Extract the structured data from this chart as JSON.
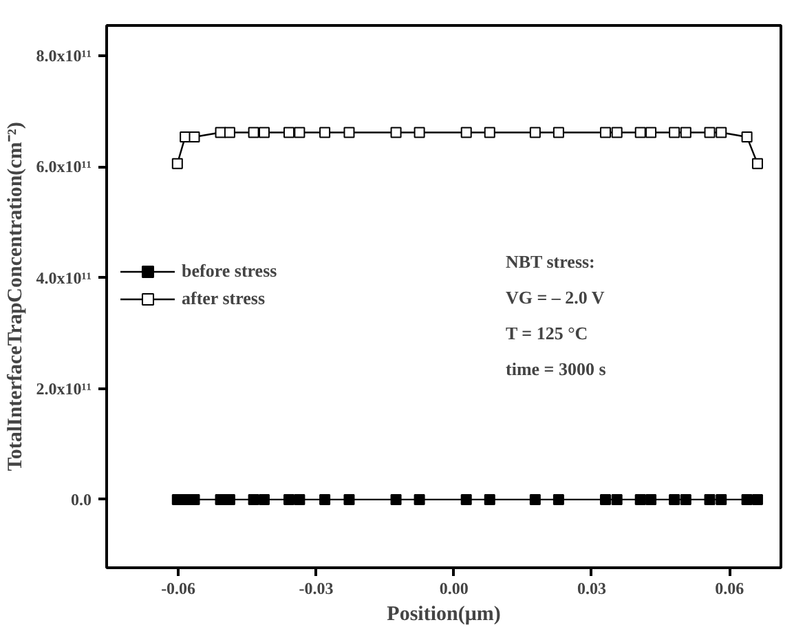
{
  "chart_data": {
    "type": "line",
    "xlabel": "Position(μm)",
    "ylabel": "TotalInterfaceTrapConcentration(cm⁻²)",
    "x": [
      -0.0602,
      -0.0585,
      -0.0565,
      -0.0508,
      -0.0488,
      -0.0436,
      -0.0413,
      -0.0359,
      -0.0336,
      -0.0281,
      -0.0228,
      -0.0126,
      -0.0075,
      0.0027,
      0.0078,
      0.0177,
      0.0228,
      0.033,
      0.0355,
      0.0406,
      0.0429,
      0.048,
      0.0505,
      0.0557,
      0.0582,
      0.0638,
      0.0661
    ],
    "series": [
      {
        "name": "before stress",
        "color": "#000000",
        "values": [
          0,
          0,
          0,
          0,
          0,
          0,
          0,
          0,
          0,
          0,
          0,
          0,
          0,
          0,
          0,
          0,
          0,
          0,
          0,
          0,
          0,
          0,
          0,
          0,
          0,
          0,
          0
        ]
      },
      {
        "name": "after stress",
        "color": "#000000",
        "values": [
          606000000000.0,
          654000000000.0,
          654000000000.0,
          662000000000.0,
          662000000000.0,
          662000000000.0,
          662000000000.0,
          662000000000.0,
          662000000000.0,
          662000000000.0,
          662000000000.0,
          662000000000.0,
          662000000000.0,
          662000000000.0,
          662000000000.0,
          662000000000.0,
          662000000000.0,
          662000000000.0,
          662000000000.0,
          662000000000.0,
          662000000000.0,
          662000000000.0,
          662000000000.0,
          662000000000.0,
          662000000000.0,
          654000000000.0,
          606000000000.0
        ]
      }
    ],
    "xlim": [
      -0.0756,
      0.0712
    ],
    "xticks": [
      {
        "value": -0.06,
        "label": "-0.06"
      },
      {
        "value": -0.03,
        "label": "-0.03"
      },
      {
        "value": 0,
        "label": "0.00"
      },
      {
        "value": 0.03,
        "label": "0.03"
      },
      {
        "value": 0.06,
        "label": "0.06"
      }
    ],
    "ylim": [
      -123000000000.0,
      855000000000.0
    ],
    "yticks": [
      {
        "value": 0,
        "label": "0.0"
      },
      {
        "value": 200000000000.0,
        "label": "2.0x10¹¹"
      },
      {
        "value": 400000000000.0,
        "label": "4.0x10¹¹"
      },
      {
        "value": 600000000000.0,
        "label": "6.0x10¹¹"
      },
      {
        "value": 800000000000.0,
        "label": "8.0x10¹¹"
      }
    ],
    "annotations": [
      "NBT stress:",
      "VG = – 2.0 V",
      "T = 125 °C",
      "time = 3000 s"
    ],
    "marker": "square",
    "line_style": "solid",
    "grid": false,
    "legend": "left"
  }
}
